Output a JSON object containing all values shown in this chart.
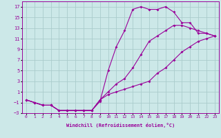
{
  "xlabel": "Windchill (Refroidissement éolien,°C)",
  "bg_color": "#cce8e8",
  "line_color": "#990099",
  "grid_color": "#aacccc",
  "x_data": [
    0,
    1,
    2,
    3,
    4,
    5,
    6,
    7,
    8,
    9,
    10,
    11,
    12,
    13,
    14,
    15,
    16,
    17,
    18,
    19,
    20,
    21,
    22,
    23
  ],
  "line1": [
    -0.5,
    -1.0,
    -1.5,
    -1.5,
    -2.5,
    -2.5,
    -2.5,
    -2.5,
    -2.5,
    -0.8,
    5.0,
    9.5,
    12.5,
    16.5,
    17.0,
    16.5,
    16.5,
    17.0,
    16.0,
    14.0,
    14.0,
    12.0,
    12.0,
    11.5
  ],
  "line2": [
    -0.5,
    -1.0,
    -1.5,
    -1.5,
    -2.5,
    -2.5,
    -2.5,
    -2.5,
    -2.5,
    -0.5,
    1.0,
    2.5,
    3.5,
    5.5,
    8.0,
    10.5,
    11.5,
    12.5,
    13.5,
    13.5,
    13.0,
    12.5,
    12.0,
    11.5
  ],
  "line3": [
    -0.5,
    -1.0,
    -1.5,
    -1.5,
    -2.5,
    -2.5,
    -2.5,
    -2.5,
    -2.5,
    -0.5,
    0.5,
    1.0,
    1.5,
    2.0,
    2.5,
    3.0,
    4.5,
    5.5,
    7.0,
    8.5,
    9.5,
    10.5,
    11.0,
    11.5
  ],
  "ylim": [
    -3,
    18
  ],
  "xlim": [
    -0.5,
    23.5
  ],
  "yticks": [
    -3,
    -1,
    1,
    3,
    5,
    7,
    9,
    11,
    13,
    15,
    17
  ],
  "xticks": [
    0,
    1,
    2,
    3,
    4,
    5,
    6,
    7,
    8,
    9,
    10,
    11,
    12,
    13,
    14,
    15,
    16,
    17,
    18,
    19,
    20,
    21,
    22,
    23
  ]
}
